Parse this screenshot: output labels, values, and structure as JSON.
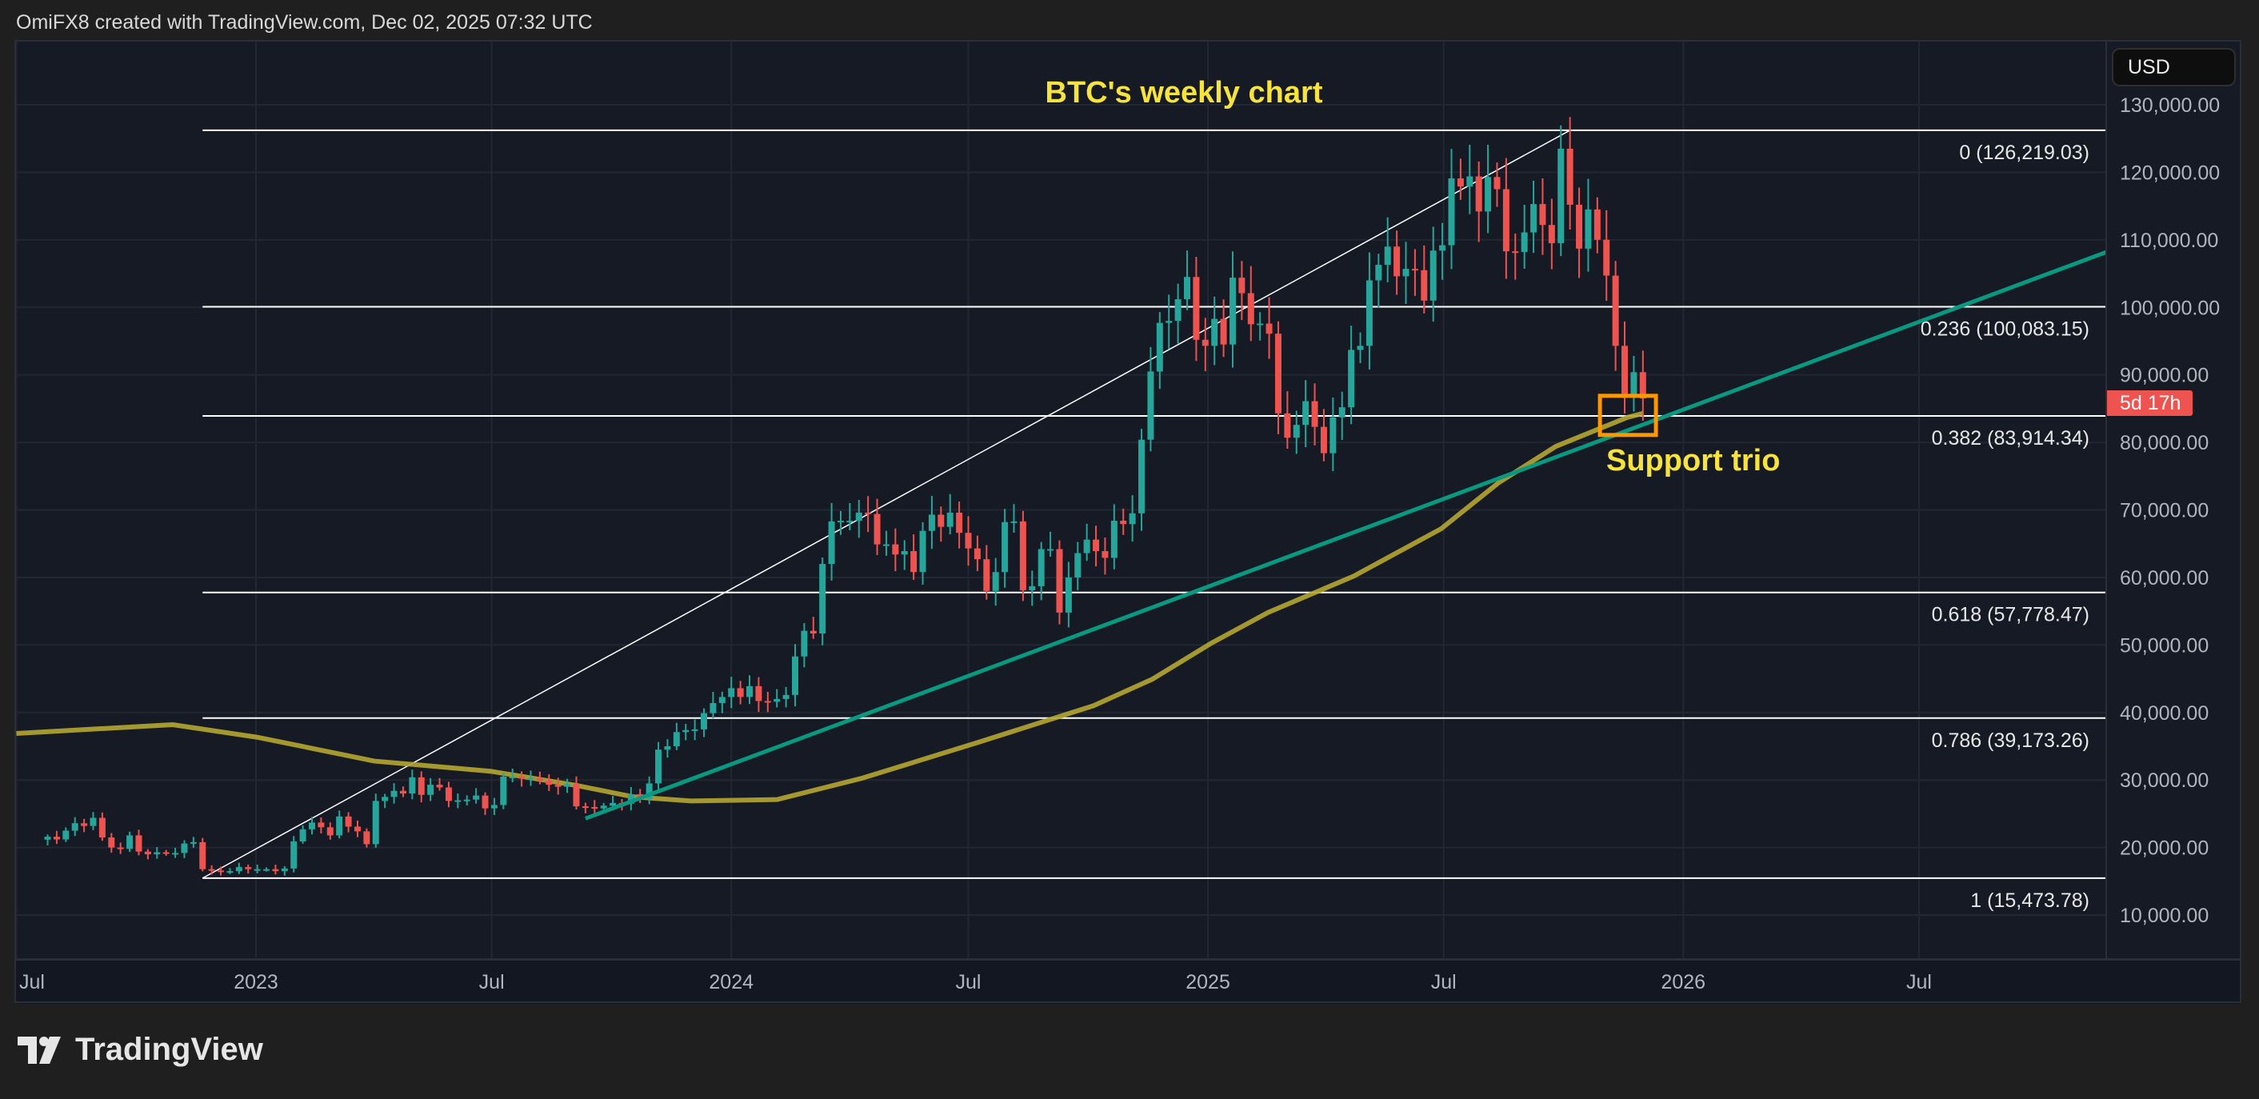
{
  "header": {
    "attribution": "OmiFX8 created with TradingView.com, Dec 02, 2025 07:32 UTC"
  },
  "price_axis": {
    "currency": "USD",
    "countdown": "5d 17h"
  },
  "footer": {
    "brand": "TradingView"
  },
  "colors": {
    "up": "#26a69a",
    "down": "#ef5350",
    "trendline": "#089981",
    "ma": "#b5a631",
    "annotation": "#f7e33b",
    "box": "#ff9800",
    "fib": "#ffffff"
  },
  "chart_data": {
    "type": "candlestick",
    "title": "BTC's weekly chart",
    "annotation_text": "Support trio",
    "ylabel": "USD",
    "ylim": [
      5000,
      136000
    ],
    "grid": true,
    "y_ticks": [
      "130,000.00",
      "120,000.00",
      "110,000.00",
      "100,000.00",
      "90,000.00",
      "80,000.00",
      "70,000.00",
      "60,000.00",
      "50,000.00",
      "40,000.00",
      "30,000.00",
      "20,000.00",
      "10,000.00"
    ],
    "y_tick_values": [
      130000,
      120000,
      110000,
      100000,
      90000,
      80000,
      70000,
      60000,
      50000,
      40000,
      30000,
      20000,
      10000
    ],
    "x_ticks": [
      {
        "label": "Jul",
        "date": "2022-07-01"
      },
      {
        "label": "2023",
        "date": "2023-01-01"
      },
      {
        "label": "Jul",
        "date": "2023-07-01"
      },
      {
        "label": "2024",
        "date": "2024-01-01"
      },
      {
        "label": "Jul",
        "date": "2024-07-01"
      },
      {
        "label": "2025",
        "date": "2025-01-01"
      },
      {
        "label": "Jul",
        "date": "2025-07-01"
      },
      {
        "label": "2026",
        "date": "2026-01-01"
      },
      {
        "label": "Jul",
        "date": "2026-07-01"
      }
    ],
    "last_week": "2025-12-01",
    "weekly_closes_k": [
      21.6,
      21.2,
      22.5,
      23.6,
      23.2,
      24.4,
      21.5,
      20.0,
      19.8,
      21.8,
      19.4,
      19.0,
      19.3,
      19.1,
      19.2,
      20.6,
      20.8,
      16.8,
      16.6,
      16.5,
      16.5,
      17.1,
      16.8,
      16.8,
      16.8,
      16.5,
      16.9,
      20.9,
      22.7,
      23.7,
      23.0,
      21.8,
      24.6,
      23.1,
      22.4,
      20.5,
      26.9,
      27.5,
      28.4,
      28.0,
      30.4,
      27.8,
      29.3,
      28.9,
      26.9,
      27.0,
      27.1,
      27.7,
      25.8,
      26.3,
      30.5,
      30.5,
      30.2,
      30.3,
      29.9,
      29.3,
      29.0,
      29.4,
      26.1,
      26.0,
      25.8,
      26.2,
      26.6,
      26.5,
      27.9,
      27.2,
      29.5,
      34.5,
      35.0,
      37.1,
      37.4,
      37.5,
      39.9,
      41.4,
      42.3,
      43.6,
      42.3,
      43.9,
      41.7,
      41.6,
      42.0,
      42.6,
      48.3,
      52.1,
      51.7,
      62.0,
      68.3,
      68.4,
      68.4,
      69.6,
      69.4,
      64.9,
      64.9,
      63.4,
      63.9,
      60.8,
      66.9,
      69.3,
      67.5,
      69.6,
      66.6,
      64.3,
      62.7,
      58.0,
      60.8,
      68.2,
      68.3,
      58.1,
      58.7,
      64.2,
      64.2,
      54.8,
      60.0,
      63.6,
      65.6,
      63.9,
      62.9,
      68.4,
      67.9,
      69.5,
      80.4,
      90.5,
      97.7,
      98.0,
      101.2,
      104.5,
      95.2,
      94.3,
      98.3,
      94.5,
      104.4,
      102.1,
      97.5,
      97.6,
      96.1,
      84.3,
      80.7,
      82.6,
      86.1,
      82.3,
      78.4,
      83.7,
      85.2,
      93.7,
      94.3,
      104.0,
      106.3,
      109.0,
      104.6,
      105.7,
      105.5,
      101.0,
      108.4,
      109.2,
      119.1,
      117.9,
      119.4,
      114.2,
      119.3,
      117.5,
      108.3,
      108.2,
      111.1,
      115.3,
      112.2,
      109.5,
      123.5,
      115.2,
      108.7,
      114.5,
      110.0,
      104.7,
      94.3,
      86.6,
      90.4,
      86.5
    ],
    "fib_retracement": {
      "from_date": "2022-11-21",
      "to_date": "2025-10-06",
      "extend_right": true,
      "levels": [
        {
          "ratio": 0,
          "price": 126219.03,
          "label": "0 (126,219.03)"
        },
        {
          "ratio": 0.236,
          "price": 100083.15,
          "label": "0.236 (100,083.15)"
        },
        {
          "ratio": 0.382,
          "price": 83914.34,
          "label": "0.382 (83,914.34)"
        },
        {
          "ratio": 0.618,
          "price": 57778.47,
          "label": "0.618 (57,778.47)"
        },
        {
          "ratio": 0.786,
          "price": 39173.26,
          "label": "0.786 (39,173.26)"
        },
        {
          "ratio": 1,
          "price": 15473.78,
          "label": "1 (15,473.78)"
        }
      ]
    },
    "trendline": {
      "start": {
        "date": "2023-09-11",
        "price": 24300
      },
      "end": {
        "date": "2026-12-31",
        "price": 111000
      }
    },
    "moving_average": [
      [
        "2022-07-01",
        36900
      ],
      [
        "2022-10-29",
        38200
      ],
      [
        "2023-01-03",
        36300
      ],
      [
        "2023-04-02",
        32800
      ],
      [
        "2023-06-30",
        31300
      ],
      [
        "2023-09-04",
        29200
      ],
      [
        "2023-10-18",
        27500
      ],
      [
        "2023-12-01",
        26900
      ],
      [
        "2024-02-05",
        27100
      ],
      [
        "2024-04-11",
        30300
      ],
      [
        "2024-07-09",
        35600
      ],
      [
        "2024-10-05",
        41000
      ],
      [
        "2024-11-19",
        44900
      ],
      [
        "2025-01-03",
        50200
      ],
      [
        "2025-02-16",
        54800
      ],
      [
        "2025-04-23",
        60200
      ],
      [
        "2025-06-29",
        67200
      ],
      [
        "2025-08-12",
        74000
      ],
      [
        "2025-09-25",
        79400
      ],
      [
        "2025-11-19",
        83700
      ],
      [
        "2025-12-01",
        84300
      ]
    ],
    "highlight_box": {
      "date_from": "2025-10-29",
      "date_to": "2025-12-11",
      "price_from": 81100,
      "price_to": 86900
    }
  }
}
